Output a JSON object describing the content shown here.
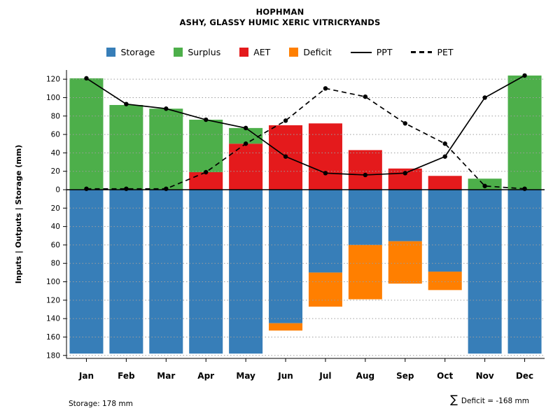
{
  "title": "HOPHMAN",
  "subtitle": "ASHY, GLASSY HUMIC XERIC VITRICRYANDS",
  "footer": {
    "storage": "Storage: 178 mm",
    "deficit_symbol": "∑",
    "deficit_text": "Deficit = -168 mm"
  },
  "legend": [
    {
      "label": "Storage",
      "type": "swatch",
      "color": "#377eb8"
    },
    {
      "label": "Surplus",
      "type": "swatch",
      "color": "#4daf4a"
    },
    {
      "label": "AET",
      "type": "swatch",
      "color": "#e41a1c"
    },
    {
      "label": "Deficit",
      "type": "swatch",
      "color": "#ff7f00"
    },
    {
      "label": "PPT",
      "type": "line-solid",
      "color": "#000000"
    },
    {
      "label": "PET",
      "type": "line-dashed",
      "color": "#000000"
    }
  ],
  "chart_data": {
    "type": "bar",
    "title": "HOPHMAN",
    "subtitle": "ASHY, GLASSY HUMIC XERIC VITRICRYANDS",
    "ylabel": "Inputs | Outputs | Storage  (mm)",
    "categories": [
      "Jan",
      "Feb",
      "Mar",
      "Apr",
      "May",
      "Jun",
      "Jul",
      "Aug",
      "Sep",
      "Oct",
      "Nov",
      "Dec"
    ],
    "ylim": [
      -183,
      130
    ],
    "yticks": [
      120,
      100,
      80,
      60,
      40,
      20,
      0,
      -20,
      -40,
      -60,
      -80,
      -100,
      -120,
      -140,
      -160,
      -180
    ],
    "grid": "dotted-horizontal",
    "legend_position": "top-center",
    "bars": {
      "aet": {
        "name": "AET",
        "color": "#e41a1c",
        "values": [
          0,
          0,
          0,
          19,
          50,
          70,
          72,
          43,
          23,
          15,
          0,
          0
        ]
      },
      "surplus": {
        "name": "Surplus",
        "color": "#4daf4a",
        "stacked_on": "aet",
        "tops": [
          121,
          92,
          88,
          76,
          67,
          0,
          0,
          0,
          0,
          0,
          12,
          124
        ]
      },
      "storage": {
        "name": "Storage",
        "color": "#377eb8",
        "plotted_downward": true,
        "depths": [
          178,
          178,
          178,
          178,
          178,
          145,
          90,
          60,
          56,
          89,
          178,
          178
        ]
      },
      "deficit": {
        "name": "Deficit",
        "color": "#ff7f00",
        "plotted_downward": true,
        "segments": [
          [
            0,
            0
          ],
          [
            0,
            0
          ],
          [
            0,
            0
          ],
          [
            0,
            0
          ],
          [
            0,
            0
          ],
          [
            145,
            153
          ],
          [
            90,
            127
          ],
          [
            60,
            119
          ],
          [
            56,
            102
          ],
          [
            89,
            109
          ],
          [
            0,
            0
          ],
          [
            0,
            0
          ]
        ]
      }
    },
    "lines": [
      {
        "name": "PPT",
        "style": "solid",
        "color": "#000000",
        "marker": "circle",
        "values": [
          121,
          93,
          88,
          76,
          67,
          36,
          18,
          16,
          18,
          36,
          100,
          124
        ]
      },
      {
        "name": "PET",
        "style": "dashed",
        "color": "#000000",
        "marker": "circle",
        "values": [
          1,
          1,
          1,
          19,
          50,
          75,
          110,
          101,
          72,
          50,
          4,
          1
        ]
      }
    ],
    "annotations": {
      "storage_total": "Storage: 178 mm",
      "deficit_total": "∑ Deficit = -168 mm"
    }
  }
}
